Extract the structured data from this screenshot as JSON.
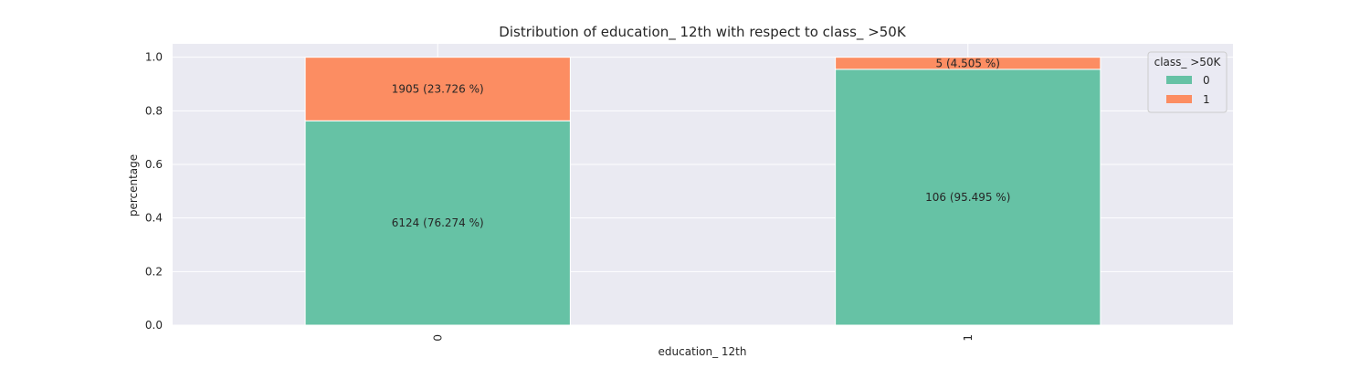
{
  "chart_data": {
    "type": "bar",
    "stacked": true,
    "title": "Distribution of education_ 12th with respect to class_ >50K",
    "xlabel": "education_ 12th",
    "ylabel": "percentage",
    "categories": [
      "0",
      "1"
    ],
    "ylim": [
      0,
      1.05
    ],
    "yticks": [
      "0.0",
      "0.2",
      "0.4",
      "0.6",
      "0.8",
      "1.0"
    ],
    "grid": true,
    "legend": {
      "title": "class_ >50K",
      "placement": "top-right"
    },
    "series": [
      {
        "name": "0",
        "color": "#66c2a5",
        "values": [
          0.76274,
          0.95495
        ],
        "labels": [
          "6124 (76.274 %)",
          "106 (95.495 %)"
        ]
      },
      {
        "name": "1",
        "color": "#fc8d62",
        "values": [
          0.23726,
          0.04505
        ],
        "labels": [
          "1905 (23.726 %)",
          "5 (4.505 %)"
        ]
      }
    ]
  }
}
